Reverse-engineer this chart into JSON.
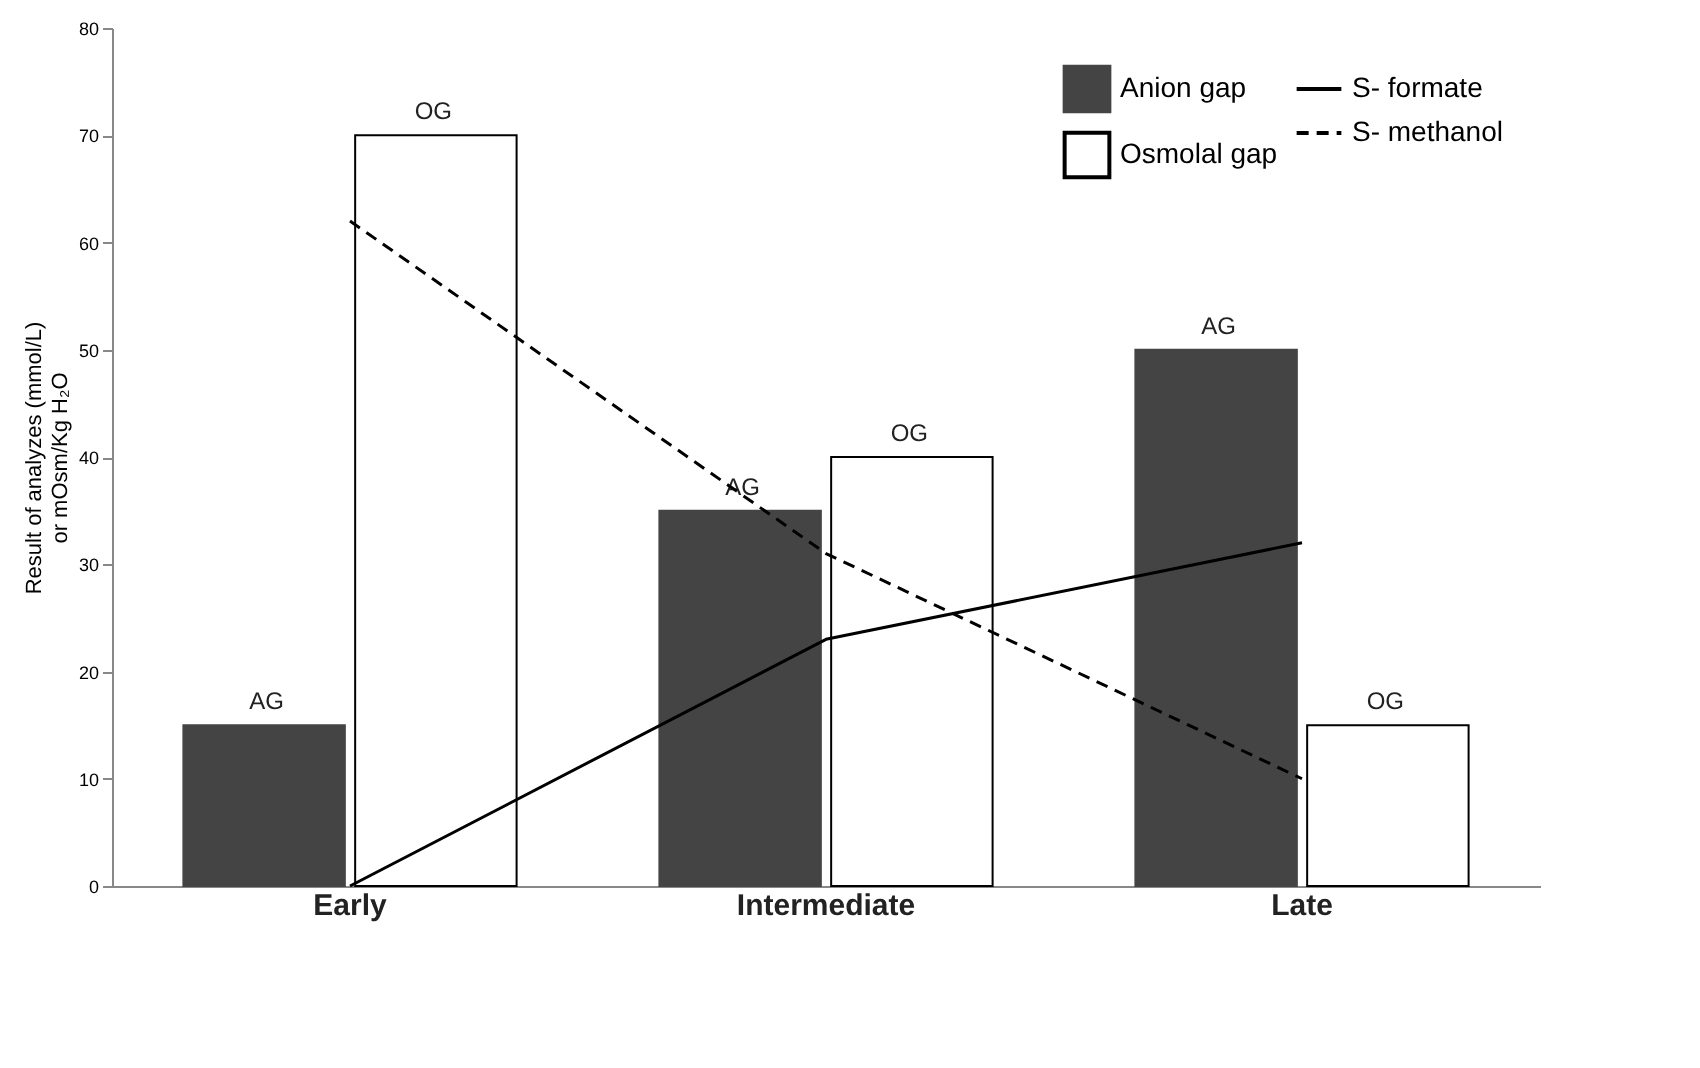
{
  "chart_data": {
    "type": "bar",
    "categories": [
      "Early",
      "Intermediate",
      "Late"
    ],
    "ylabel": "Result of analyzes (mmol/L)\nor mOsm/Kg H₂O",
    "ylim": [
      0,
      80
    ],
    "yticks": [
      0,
      10,
      20,
      30,
      40,
      50,
      60,
      70,
      80
    ],
    "grid": false,
    "legend": "top right",
    "series": [
      {
        "name": "Anion gap",
        "color": "#444444",
        "values": [
          15,
          35,
          50
        ],
        "value_labels": [
          "AG",
          "AG",
          "AG"
        ]
      },
      {
        "name": "Osmolal gap",
        "color": "#ffffff",
        "values": [
          70,
          40,
          15
        ],
        "value_labels": [
          "OG",
          "OG",
          "OG"
        ]
      },
      {
        "name": "S- formate",
        "type": "line",
        "color": "#000000",
        "line_style": "solid",
        "values": [
          0,
          23,
          32
        ]
      },
      {
        "name": "S- methanol",
        "type": "line",
        "color": "#000000",
        "line_style": "dashed",
        "values": [
          62,
          31,
          10
        ]
      }
    ]
  }
}
